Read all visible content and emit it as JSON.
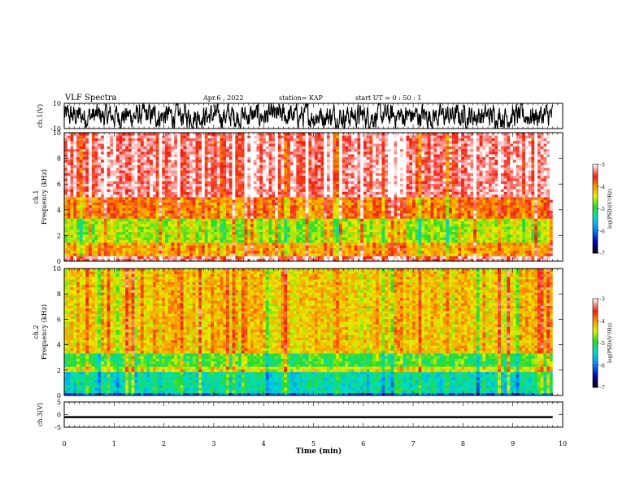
{
  "header": {
    "title": "VLF Spectra",
    "date": "Apr.6 , 2022",
    "station": "station= KAP",
    "start": "start UT = 0 : 50 : 1"
  },
  "chart_data": [
    {
      "type": "line",
      "panel": "ch1-waveform",
      "ylabel": "ch.1(V)",
      "ylim": [
        -10,
        10
      ],
      "ytick_labels": [
        "10",
        "-10"
      ],
      "x_range": [
        0,
        9.8
      ],
      "description_values": "dense noisy waveform oscillating roughly between -8 and 8 V"
    },
    {
      "type": "heatmap",
      "panel": "ch1-spectrogram",
      "ylabel": "ch.1 Frequency (kHz)",
      "ylim": [
        0,
        10
      ],
      "ytick_labels": [
        "0",
        "2",
        "4",
        "6",
        "8",
        "10"
      ],
      "x_range": [
        0,
        9.8
      ],
      "bands": [
        {
          "from": 0,
          "to": 0.5,
          "level": -3.3
        },
        {
          "from": 0.5,
          "to": 1.5,
          "level": -4.1
        },
        {
          "from": 1.5,
          "to": 3.4,
          "level": -4.6
        },
        {
          "from": 3.4,
          "to": 5.0,
          "level": -3.9
        },
        {
          "from": 5.0,
          "to": 10.0,
          "level": -3.3
        }
      ],
      "colorbar": {
        "label": "log(PSD)(V²/Hz)",
        "range": [
          -7,
          -3
        ],
        "ticks": [
          "-3",
          "-4",
          "-5",
          "-6",
          "-7"
        ]
      }
    },
    {
      "type": "heatmap",
      "panel": "ch2-spectrogram",
      "ylabel": "ch.2 Frequency (kHz)",
      "ylim": [
        0,
        10
      ],
      "ytick_labels": [
        "0",
        "2",
        "4",
        "6",
        "8",
        "10"
      ],
      "x_range": [
        0,
        9.8
      ],
      "bands": [
        {
          "from": 0,
          "to": 0.2,
          "level": -6.0
        },
        {
          "from": 0.2,
          "to": 1.8,
          "level": -5.3
        },
        {
          "from": 1.8,
          "to": 2.3,
          "level": -4.4
        },
        {
          "from": 2.3,
          "to": 3.3,
          "level": -4.9
        },
        {
          "from": 3.3,
          "to": 10.0,
          "level": -4.2
        }
      ],
      "colorbar": {
        "label": "log(PSD)(V²/Hz)",
        "range": [
          -7,
          -3
        ],
        "ticks": [
          "-3",
          "-4",
          "-5",
          "-6",
          "-7"
        ]
      }
    },
    {
      "type": "line",
      "panel": "ch3-waveform",
      "ylabel": "ch.3(V)",
      "ylim": [
        -5,
        5
      ],
      "ytick_labels": [
        "5",
        "0",
        "-5"
      ],
      "x_range": [
        0,
        9.8
      ],
      "description_values": "nearly constant level near -1 V with small jitter"
    }
  ],
  "xaxis": {
    "label": "Time (min)",
    "ticks": [
      "0",
      "1",
      "2",
      "3",
      "4",
      "5",
      "6",
      "7",
      "8",
      "9",
      "10"
    ],
    "xlim": [
      0,
      10
    ]
  }
}
